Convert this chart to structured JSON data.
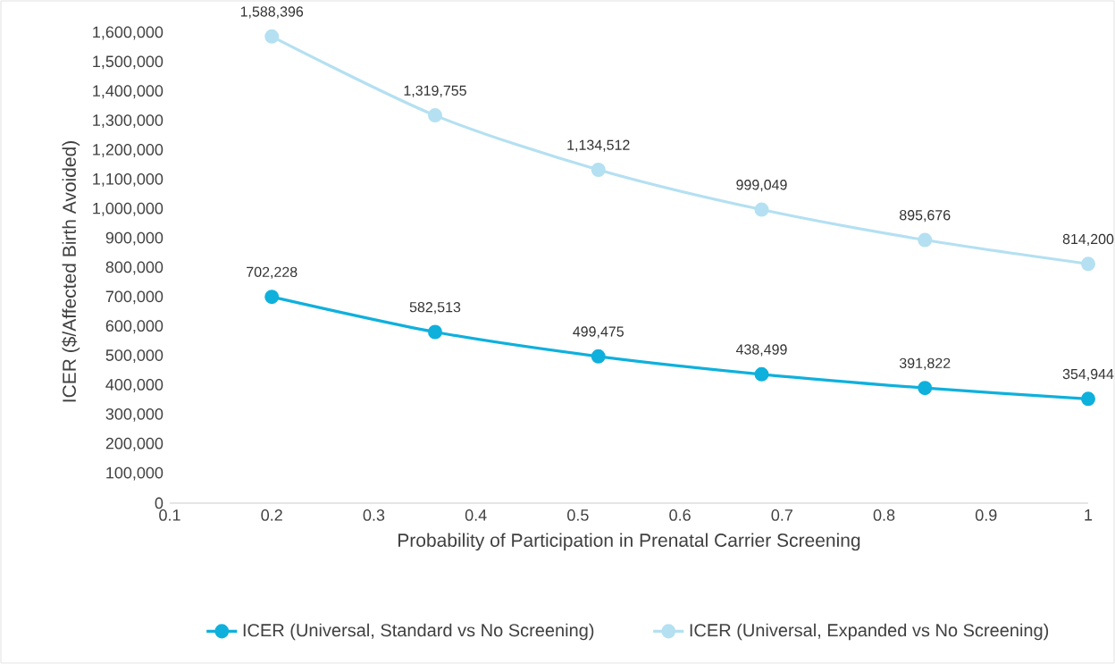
{
  "chart_data": {
    "type": "line",
    "xlabel": "Probability of Participation in Prenatal Carrier Screening",
    "ylabel": "ICER ($/Affected Birth Avoided)",
    "x": [
      0.2,
      0.36,
      0.52,
      0.68,
      0.84,
      1
    ],
    "xlim": [
      0.1,
      1
    ],
    "xticks": [
      0.1,
      0.2,
      0.3,
      0.4,
      0.5,
      0.6,
      0.7,
      0.8,
      0.9,
      1
    ],
    "ylim": [
      0,
      1600000
    ],
    "yticks": [
      0,
      {
        "value": 100000,
        "label": "100,000"
      },
      {
        "value": 200000,
        "label": "200,000"
      },
      {
        "value": 300000,
        "label": "300,000"
      },
      {
        "value": 400000,
        "label": "400,000"
      },
      {
        "value": 500000,
        "label": "500,000"
      },
      {
        "value": 600000,
        "label": "600,000"
      },
      {
        "value": 700000,
        "label": "700,000"
      },
      {
        "value": 800000,
        "label": "800,000"
      },
      {
        "value": 900000,
        "label": "900,000"
      },
      {
        "value": 1000000,
        "label": "1,000,000"
      },
      {
        "value": 1100000,
        "label": "1,100,000"
      },
      {
        "value": 1200000,
        "label": "1,200,000"
      },
      {
        "value": 1300000,
        "label": "1,300,000"
      },
      {
        "value": 1400000,
        "label": "1,400,000"
      },
      {
        "value": 1500000,
        "label": "1,500,000"
      },
      {
        "value": 1600000,
        "label": "1,600,000"
      }
    ],
    "series": [
      {
        "name": "ICER (Universal, Standard vs No Screening)",
        "color": "#0fb0dc",
        "values": [
          702228,
          582513,
          499475,
          438499,
          391822,
          354944
        ],
        "value_labels": [
          "702,228",
          "582,513",
          "499,475",
          "438,499",
          "391,822",
          "354,944"
        ]
      },
      {
        "name": "ICER (Universal, Expanded vs No Screening)",
        "color": "#b4e0f2",
        "values": [
          1588396,
          1319755,
          1134512,
          999049,
          895676,
          814200
        ],
        "value_labels": [
          "1,588,396",
          "1,319,755",
          "1,134,512",
          "999,049",
          "895,676",
          "814,200"
        ]
      }
    ],
    "legend": "bottom",
    "marker": "circle",
    "line_style": "solid"
  }
}
